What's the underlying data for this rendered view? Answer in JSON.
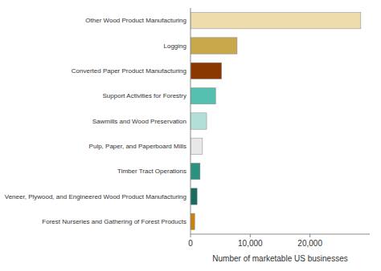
{
  "chart_data": {
    "type": "bar",
    "orientation": "horizontal",
    "categories": [
      "Forest Nurseries and Gathering of Forest Products",
      "Veneer, Plywood, and Engineered Wood Product Manufacturing",
      "Timber Tract Operations",
      "Pulp, Paper, and Paperboard Mills",
      "Sawmills and Wood Preservation",
      "Support Activities for Forestry",
      "Converted Paper Product Manufacturing",
      "Logging",
      "Other Wood Product Manufacturing"
    ],
    "values": [
      700,
      1100,
      1600,
      2000,
      2700,
      4200,
      5200,
      7800,
      28500
    ],
    "colors": [
      "#c8820a",
      "#1a6b60",
      "#2a9080",
      "#e8e8e8",
      "#b0e0d8",
      "#55bfb0",
      "#8b3800",
      "#c8a84b",
      "#eddcac"
    ],
    "xlabel": "Number of marketable US businesses",
    "xlim": [
      0,
      30000
    ],
    "xticks": [
      0,
      {
        "value": 10000,
        "label": "10,000"
      },
      {
        "value": 20000,
        "label": "20,000"
      }
    ],
    "grid": false
  }
}
